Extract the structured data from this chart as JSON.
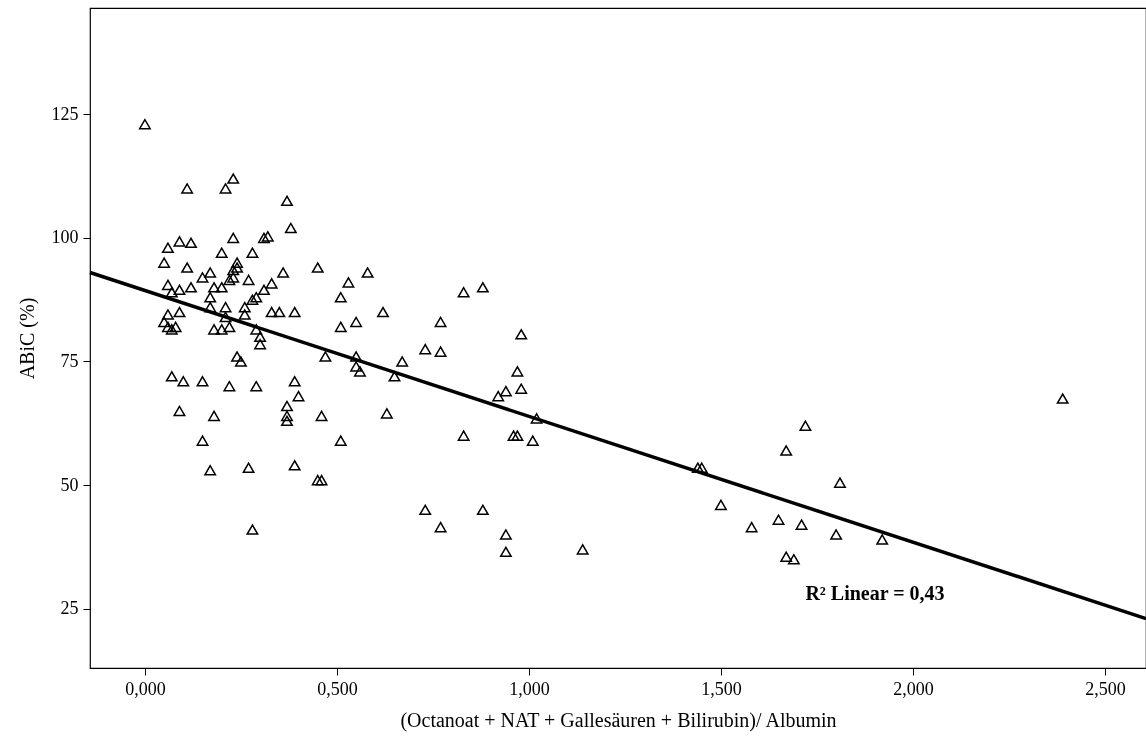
{
  "chart_data": {
    "type": "scatter",
    "xlabel": "(Octanoat + NAT + Gallesäuren + Bilirubin)/ Albumin",
    "ylabel": "ABiC (%)",
    "xlim": [
      -0.143,
      2.607
    ],
    "ylim": [
      13,
      146.5
    ],
    "xticks": [
      {
        "value": 0,
        "label": "0,000"
      },
      {
        "value": 0.5,
        "label": "0,500"
      },
      {
        "value": 1,
        "label": "1,000"
      },
      {
        "value": 1.5,
        "label": "1,500"
      },
      {
        "value": 2,
        "label": "2,000"
      },
      {
        "value": 2.5,
        "label": "2,500"
      }
    ],
    "yticks": [
      25,
      50,
      75,
      100,
      125
    ],
    "grid": false,
    "marker": "triangle",
    "annotations": [
      "R² Linear = 0,43"
    ],
    "series": [
      {
        "color": "#000000",
        "x": [
          0.0,
          0.11,
          0.21,
          0.23,
          0.37,
          0.38,
          0.31,
          0.32,
          0.23,
          0.06,
          0.09,
          0.12,
          0.05,
          0.11,
          0.2,
          0.28,
          0.24,
          0.23,
          0.24,
          0.23,
          0.22,
          0.15,
          0.17,
          0.36,
          0.45,
          0.53,
          0.58,
          0.27,
          0.33,
          0.06,
          0.09,
          0.12,
          0.18,
          0.2,
          0.07,
          0.17,
          0.29,
          0.28,
          0.31,
          0.51,
          0.83,
          0.88,
          0.06,
          0.09,
          0.17,
          0.21,
          0.26,
          0.26,
          0.33,
          0.35,
          0.39,
          0.05,
          0.06,
          0.07,
          0.08,
          0.18,
          0.2,
          0.21,
          0.22,
          0.29,
          0.3,
          0.3,
          0.51,
          0.55,
          0.62,
          0.77,
          0.98,
          0.24,
          0.25,
          0.47,
          0.55,
          0.55,
          0.56,
          0.65,
          0.67,
          0.73,
          0.77,
          0.97,
          0.07,
          0.1,
          0.15,
          0.22,
          0.29,
          0.39,
          0.37,
          0.4,
          0.37,
          0.37,
          0.09,
          0.18,
          0.46,
          0.63,
          0.92,
          0.94,
          0.98,
          1.02,
          0.83,
          0.96,
          0.97,
          1.01,
          0.15,
          0.51,
          0.17,
          0.27,
          0.39,
          0.45,
          0.46,
          0.28,
          0.73,
          0.77,
          0.88,
          0.94,
          0.94,
          1.14,
          1.44,
          1.45,
          1.5,
          1.58,
          1.65,
          1.67,
          1.67,
          1.69,
          1.71,
          1.72,
          1.8,
          1.81,
          1.92,
          2.39
        ],
        "values": [
          123,
          110,
          110,
          112,
          107.5,
          102,
          100,
          100.3,
          100,
          98,
          99.3,
          99,
          95,
          94,
          97,
          97,
          95,
          93.5,
          94,
          92,
          91.5,
          92,
          93,
          93,
          94,
          91,
          93,
          91.5,
          90.8,
          90.5,
          89.5,
          90,
          90,
          90,
          89,
          88,
          88,
          87.5,
          89.5,
          88,
          89,
          90,
          84.5,
          85,
          86,
          86,
          86,
          84.5,
          85,
          85,
          85,
          83,
          82,
          81.5,
          82,
          81.5,
          81.5,
          84,
          82,
          81.5,
          80,
          78.5,
          82,
          83,
          85,
          83,
          80.5,
          76,
          75,
          76,
          76,
          74,
          73,
          72,
          75,
          77.5,
          77,
          73,
          72,
          71,
          71,
          70,
          70,
          71,
          66,
          68,
          64,
          63,
          65,
          64,
          64,
          64.5,
          68,
          69,
          69.5,
          63.5,
          60,
          60,
          60,
          59,
          59,
          59,
          53,
          53.5,
          54,
          51,
          51,
          41,
          45,
          41.5,
          45,
          40,
          36.5,
          37,
          53.5,
          53.5,
          46,
          41.5,
          43,
          57,
          35.5,
          35,
          42,
          62,
          40,
          50.5,
          39,
          67.5
        ]
      },
      {
        "type": "line",
        "color": "#000000",
        "line_style": "solid",
        "marker": "none",
        "x": [
          -0.143,
          2.607
        ],
        "values": [
          93,
          23
        ]
      }
    ]
  }
}
